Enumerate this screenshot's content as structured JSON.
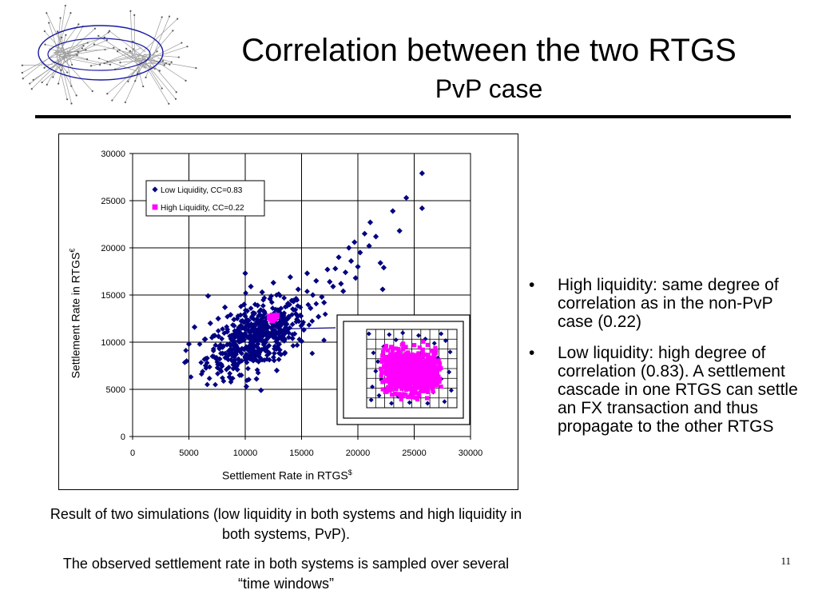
{
  "slide": {
    "title": "Correlation between the two RTGS",
    "subtitle": "PvP case",
    "page_number": "11"
  },
  "bullets": [
    "High liquidity: same degree of correlation as in the non-PvP case (0.22)",
    "Low liquidity: high degree of correlation (0.83). A settlement cascade in one RTGS can settle an FX transaction and thus propagate to the other RTGS"
  ],
  "captions": {
    "line1": "Result of two simulations (low liquidity in both systems and high liquidity in both systems, PvP).",
    "line2": "The observed  settlement rate in both systems is sampled over several “time windows”"
  },
  "colors": {
    "low_liquidity": "#000080",
    "high_liquidity": "#ff00ff",
    "logo_lines": "#1a1aa0"
  },
  "icons": {
    "logo": "network-graph-icon",
    "bullet": "bullet-dot"
  },
  "chart_data": {
    "type": "scatter",
    "title": "",
    "xlabel": "Settlement Rate in RTGS",
    "xlabel_sup": "$",
    "ylabel": "Settlement Rate in RTGS",
    "ylabel_sup": "€",
    "xlim": [
      0,
      30000
    ],
    "ylim": [
      0,
      30000
    ],
    "xticks": [
      "0",
      "5000",
      "10000",
      "15000",
      "20000",
      "25000",
      "30000"
    ],
    "yticks": [
      "0",
      "5000",
      "10000",
      "15000",
      "20000",
      "25000",
      "30000"
    ],
    "grid": true,
    "legend_position": "top-left",
    "series": [
      {
        "name": "Low  Liquidity, CC=0.83",
        "marker": "diamond",
        "color": "#000080",
        "points": [
          [
            5000,
            9800
          ],
          [
            4800,
            8000
          ],
          [
            5500,
            11600
          ],
          [
            6700,
            14900
          ],
          [
            7600,
            12500
          ],
          [
            7300,
            10700
          ],
          [
            8000,
            8800
          ],
          [
            8200,
            13700
          ],
          [
            8700,
            12900
          ],
          [
            9300,
            7100
          ],
          [
            10000,
            17300
          ],
          [
            11400,
            4900
          ],
          [
            10500,
            15900
          ],
          [
            8600,
            6300
          ],
          [
            9200,
            9600
          ],
          [
            9700,
            11500
          ],
          [
            10300,
            12300
          ],
          [
            10800,
            10100
          ],
          [
            11200,
            8700
          ],
          [
            11700,
            13200
          ],
          [
            12200,
            14600
          ],
          [
            12600,
            9300
          ],
          [
            13200,
            11900
          ],
          [
            13800,
            14100
          ],
          [
            14200,
            10400
          ],
          [
            14700,
            15600
          ],
          [
            15200,
            11300
          ],
          [
            15800,
            13600
          ],
          [
            16300,
            16500
          ],
          [
            16800,
            14800
          ],
          [
            17300,
            17700
          ],
          [
            17800,
            15900
          ],
          [
            18300,
            19000
          ],
          [
            18900,
            17400
          ],
          [
            19400,
            18600
          ],
          [
            19700,
            20600
          ],
          [
            20200,
            19500
          ],
          [
            20600,
            21500
          ],
          [
            21100,
            22700
          ],
          [
            21600,
            21200
          ],
          [
            22000,
            18400
          ],
          [
            22200,
            15600
          ],
          [
            22300,
            17900
          ],
          [
            23100,
            23900
          ],
          [
            24300,
            25300
          ],
          [
            25700,
            27900
          ],
          [
            25700,
            24200
          ],
          [
            23700,
            21800
          ],
          [
            19800,
            16800
          ],
          [
            18500,
            16200
          ],
          [
            16500,
            12700
          ],
          [
            15000,
            10100
          ],
          [
            13500,
            8800
          ],
          [
            12800,
            7000
          ],
          [
            11000,
            6100
          ],
          [
            10100,
            5300
          ],
          [
            9500,
            6500
          ],
          [
            9000,
            12400
          ],
          [
            8400,
            11100
          ],
          [
            7800,
            9700
          ],
          [
            6900,
            12000
          ],
          [
            6400,
            10300
          ],
          [
            7100,
            8500
          ],
          [
            9900,
            14000
          ],
          [
            10700,
            13100
          ],
          [
            11500,
            15300
          ],
          [
            12000,
            11600
          ],
          [
            12500,
            16300
          ],
          [
            13000,
            13200
          ],
          [
            14000,
            16900
          ],
          [
            14500,
            13000
          ],
          [
            15500,
            17300
          ],
          [
            16000,
            15000
          ],
          [
            17000,
            14200
          ],
          [
            17500,
            16400
          ],
          [
            18000,
            17800
          ],
          [
            18700,
            15400
          ],
          [
            19200,
            20000
          ],
          [
            20000,
            18000
          ],
          [
            21000,
            20200
          ],
          [
            11800,
            9100
          ],
          [
            10900,
            11800
          ],
          [
            11300,
            10600
          ],
          [
            12300,
            12500
          ],
          [
            13300,
            12200
          ],
          [
            9600,
            10400
          ],
          [
            10400,
            9000
          ],
          [
            11100,
            13900
          ],
          [
            12700,
            10500
          ],
          [
            9400,
            8200
          ]
        ],
        "density_cluster": {
          "center": [
            11000,
            10500
          ],
          "spread": [
            2200,
            1900
          ]
        }
      },
      {
        "name": "High Liquidity, CC=0.22",
        "marker": "square",
        "color": "#ff00ff",
        "points": [
          [
            12200,
            12700
          ],
          [
            12600,
            12500
          ],
          [
            12400,
            12300
          ],
          [
            12800,
            12800
          ],
          [
            12300,
            12600
          ]
        ]
      }
    ],
    "inset": {
      "xlim": [
        21000,
        29000
      ],
      "ylim": [
        4000,
        13000
      ],
      "grid": true,
      "low_liquidity_points": [
        [
          21200,
          12500
        ],
        [
          21600,
          10300
        ],
        [
          21800,
          8200
        ],
        [
          21500,
          6400
        ],
        [
          22100,
          5400
        ],
        [
          21400,
          4900
        ],
        [
          23000,
          12400
        ],
        [
          24200,
          12600
        ],
        [
          25600,
          12300
        ],
        [
          27600,
          12500
        ],
        [
          28400,
          10400
        ],
        [
          28300,
          8100
        ],
        [
          28500,
          6000
        ],
        [
          27900,
          4700
        ],
        [
          26400,
          4500
        ],
        [
          24800,
          4600
        ],
        [
          23200,
          4500
        ],
        [
          22500,
          11000
        ],
        [
          22000,
          9300
        ],
        [
          22300,
          7200
        ],
        [
          23600,
          11800
        ],
        [
          27000,
          11400
        ],
        [
          27300,
          9700
        ],
        [
          27600,
          7300
        ],
        [
          26900,
          5800
        ],
        [
          23800,
          5300
        ],
        [
          22700,
          6100
        ],
        [
          26200,
          11900
        ],
        [
          25000,
          5400
        ],
        [
          28000,
          11700
        ]
      ],
      "high_liquidity_cluster": {
        "center": [
          24800,
          8100
        ],
        "spread": [
          1400,
          1200
        ]
      }
    }
  }
}
